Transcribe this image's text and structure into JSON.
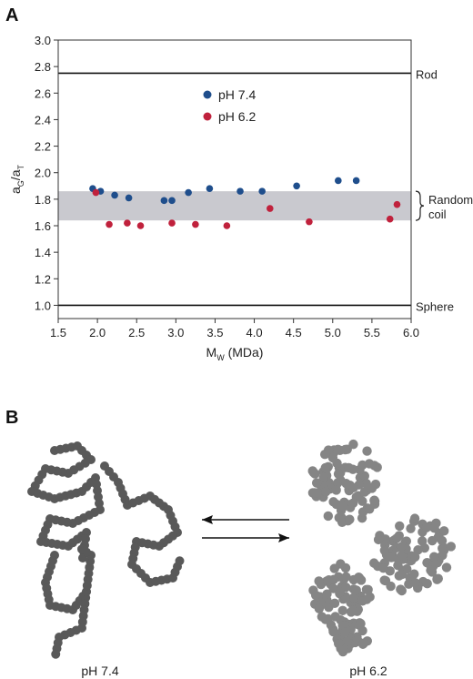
{
  "panel_a_label": "A",
  "panel_b_label": "B",
  "chart_data": {
    "type": "scatter",
    "title": "",
    "xlabel": "M",
    "xlabel_sub": "W",
    "xlabel_unit": "(MDa)",
    "ylabel": "a",
    "ylabel_sub1": "G",
    "ylabel_mid": "/a",
    "ylabel_sub2": "T",
    "xlim": [
      1.5,
      6.0
    ],
    "ylim": [
      0.9,
      3.0
    ],
    "xticks": [
      "1.5",
      "2.0",
      "2.5",
      "3.0",
      "3.5",
      "4.0",
      "4.5",
      "5.0",
      "5.5",
      "6.0"
    ],
    "yticks": [
      "1.0",
      "1.2",
      "1.4",
      "1.6",
      "1.8",
      "2.0",
      "2.2",
      "2.4",
      "2.6",
      "2.8",
      "3.0"
    ],
    "grid": false,
    "legend_position": "top-center",
    "reference_lines": [
      {
        "label": "Rod",
        "y": 2.75
      },
      {
        "label": "Sphere",
        "y": 1.0
      }
    ],
    "band": {
      "label_line1": "Random",
      "label_line2": "coil",
      "y_range": [
        1.64,
        1.86
      ],
      "color": "#c9c9cf"
    },
    "series": [
      {
        "name": "pH 7.4",
        "color": "#1f4e8c",
        "points": [
          [
            1.94,
            1.88
          ],
          [
            2.04,
            1.86
          ],
          [
            2.22,
            1.83
          ],
          [
            2.4,
            1.81
          ],
          [
            2.85,
            1.79
          ],
          [
            2.95,
            1.79
          ],
          [
            3.16,
            1.85
          ],
          [
            3.43,
            1.88
          ],
          [
            3.82,
            1.86
          ],
          [
            4.1,
            1.86
          ],
          [
            4.54,
            1.9
          ],
          [
            5.07,
            1.94
          ],
          [
            5.3,
            1.94
          ]
        ]
      },
      {
        "name": "pH 6.2",
        "color": "#c0213c",
        "points": [
          [
            1.98,
            1.85
          ],
          [
            2.15,
            1.61
          ],
          [
            2.38,
            1.62
          ],
          [
            2.55,
            1.6
          ],
          [
            2.95,
            1.62
          ],
          [
            3.25,
            1.61
          ],
          [
            3.65,
            1.6
          ],
          [
            4.2,
            1.73
          ],
          [
            4.7,
            1.63
          ],
          [
            5.73,
            1.65
          ],
          [
            5.82,
            1.76
          ]
        ]
      }
    ]
  },
  "panel_b": {
    "left_caption": "pH 7.4",
    "right_caption": "pH 6.2",
    "left_color": "#595959",
    "right_color": "#858585"
  }
}
